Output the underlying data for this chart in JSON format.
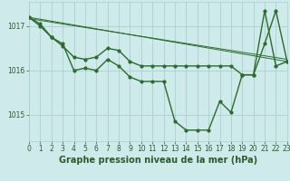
{
  "line1": {
    "x": [
      0,
      1,
      2,
      3,
      4,
      5,
      6,
      7,
      8,
      9,
      10,
      11,
      12,
      13,
      14,
      15,
      16,
      17,
      18,
      19,
      20,
      21,
      22,
      23
    ],
    "y": [
      1017.2,
      1017.0,
      1016.75,
      1016.6,
      1016.0,
      1016.05,
      1016.0,
      1016.25,
      1016.1,
      1015.85,
      1015.75,
      1015.75,
      1015.75,
      1014.85,
      1014.65,
      1014.65,
      1014.65,
      1015.3,
      1015.05,
      1015.9,
      1015.9,
      1017.35,
      1016.1,
      1016.2
    ],
    "color": "#2d6a2d",
    "linewidth": 1.0,
    "marker": "o",
    "markersize": 2.0
  },
  "line2": {
    "x": [
      0,
      1,
      2,
      3,
      4,
      5,
      6,
      7,
      8,
      9,
      10,
      11,
      12,
      13,
      14,
      15,
      16,
      17,
      18,
      19,
      20,
      21,
      22,
      23
    ],
    "y": [
      1017.2,
      1017.05,
      1016.75,
      1016.55,
      1016.3,
      1016.25,
      1016.3,
      1016.5,
      1016.45,
      1016.2,
      1016.1,
      1016.1,
      1016.1,
      1016.1,
      1016.1,
      1016.1,
      1016.1,
      1016.1,
      1016.1,
      1015.9,
      1015.9,
      1016.6,
      1017.35,
      1016.2
    ],
    "color": "#2d6a2d",
    "linewidth": 1.0,
    "marker": "o",
    "markersize": 2.0
  },
  "trend": {
    "x": [
      0,
      23
    ],
    "y": [
      1017.2,
      1016.2
    ],
    "color": "#2d6a2d",
    "linewidth": 0.7,
    "linestyle": "-"
  },
  "xlim": [
    0,
    23
  ],
  "ylim": [
    1014.4,
    1017.55
  ],
  "yticks": [
    1015,
    1016,
    1017
  ],
  "xticks": [
    0,
    1,
    2,
    3,
    4,
    5,
    6,
    7,
    8,
    9,
    10,
    11,
    12,
    13,
    14,
    15,
    16,
    17,
    18,
    19,
    20,
    21,
    22,
    23
  ],
  "xlabel": "Graphe pression niveau de la mer (hPa)",
  "bg_color": "#ceeaea",
  "grid_color": "#a8d0d0",
  "line_color": "#2d5a2d",
  "tick_fontsize": 5.5,
  "xlabel_fontsize": 7.0
}
